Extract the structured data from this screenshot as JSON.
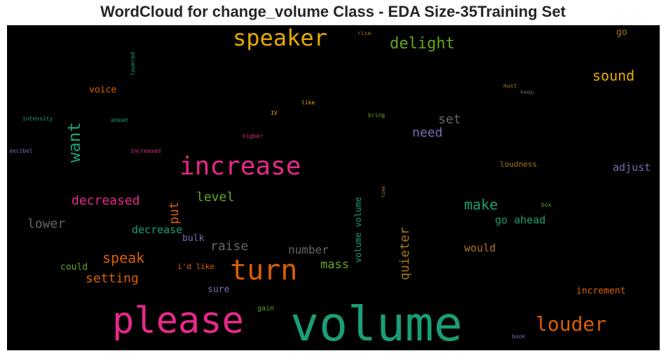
{
  "chart_data": {
    "type": "wordcloud",
    "title": "WordCloud for change_volume Class - EDA Size-35Training Set",
    "background": "#000000",
    "words": [
      {
        "text": "volume",
        "color": "#1b9e77"
      },
      {
        "text": "please",
        "color": "#e7298a"
      },
      {
        "text": "turn",
        "color": "#d95f02"
      },
      {
        "text": "increase",
        "color": "#e7298a"
      },
      {
        "text": "speaker",
        "color": "#e6ab02"
      },
      {
        "text": "louder",
        "color": "#d95f02"
      },
      {
        "text": "want",
        "color": "#1b9e77"
      },
      {
        "text": "delight",
        "color": "#66a61e"
      },
      {
        "text": "sound",
        "color": "#e6ab02"
      },
      {
        "text": "make",
        "color": "#1b9e77"
      },
      {
        "text": "speak",
        "color": "#d95f02"
      },
      {
        "text": "decreased",
        "color": "#e7298a"
      },
      {
        "text": "setting",
        "color": "#d95f02"
      },
      {
        "text": "raise",
        "color": "#666666"
      },
      {
        "text": "lower",
        "color": "#666666"
      },
      {
        "text": "level",
        "color": "#66a61e"
      },
      {
        "text": "put",
        "color": "#d95f02"
      },
      {
        "text": "need",
        "color": "#7570b3"
      },
      {
        "text": "set",
        "color": "#666666"
      },
      {
        "text": "quieter",
        "color": "#a6761d"
      },
      {
        "text": "mass",
        "color": "#66a61e"
      },
      {
        "text": "number",
        "color": "#666666"
      },
      {
        "text": "adjust",
        "color": "#7570b3"
      },
      {
        "text": "would",
        "color": "#a6761d"
      },
      {
        "text": "decrease",
        "color": "#1b9e77"
      },
      {
        "text": "go ahead",
        "color": "#1b9e77"
      },
      {
        "text": "volume volume",
        "color": "#1b9e77"
      },
      {
        "text": "increment",
        "color": "#d95f02"
      },
      {
        "text": "voice",
        "color": "#d95f02"
      },
      {
        "text": "sure",
        "color": "#7570b3"
      },
      {
        "text": "could",
        "color": "#66a61e"
      },
      {
        "text": "bulk",
        "color": "#7570b3"
      },
      {
        "text": "loudness",
        "color": "#a6761d"
      },
      {
        "text": "i'd like",
        "color": "#d95f02"
      },
      {
        "text": "go",
        "color": "#a6761d"
      },
      {
        "text": "gain",
        "color": "#66a61e"
      },
      {
        "text": "intensity",
        "color": "#1b9e77"
      },
      {
        "text": "ahead",
        "color": "#1b9e77"
      },
      {
        "text": "decibel",
        "color": "#7570b3"
      },
      {
        "text": "increased",
        "color": "#e7298a"
      },
      {
        "text": "higher",
        "color": "#e7298a"
      },
      {
        "text": "lowered",
        "color": "#1b9e77"
      },
      {
        "text": "like",
        "color": "#e6ab02"
      },
      {
        "text": "IV",
        "color": "#e6ab02"
      },
      {
        "text": "bring",
        "color": "#66a61e"
      },
      {
        "text": "must",
        "color": "#a6761d"
      },
      {
        "text": "keep",
        "color": "#666666"
      },
      {
        "text": "rise",
        "color": "#a6761d"
      },
      {
        "text": "time",
        "color": "#a6761d"
      },
      {
        "text": "box",
        "color": "#66a61e"
      },
      {
        "text": "book",
        "color": "#7570b3"
      }
    ]
  }
}
